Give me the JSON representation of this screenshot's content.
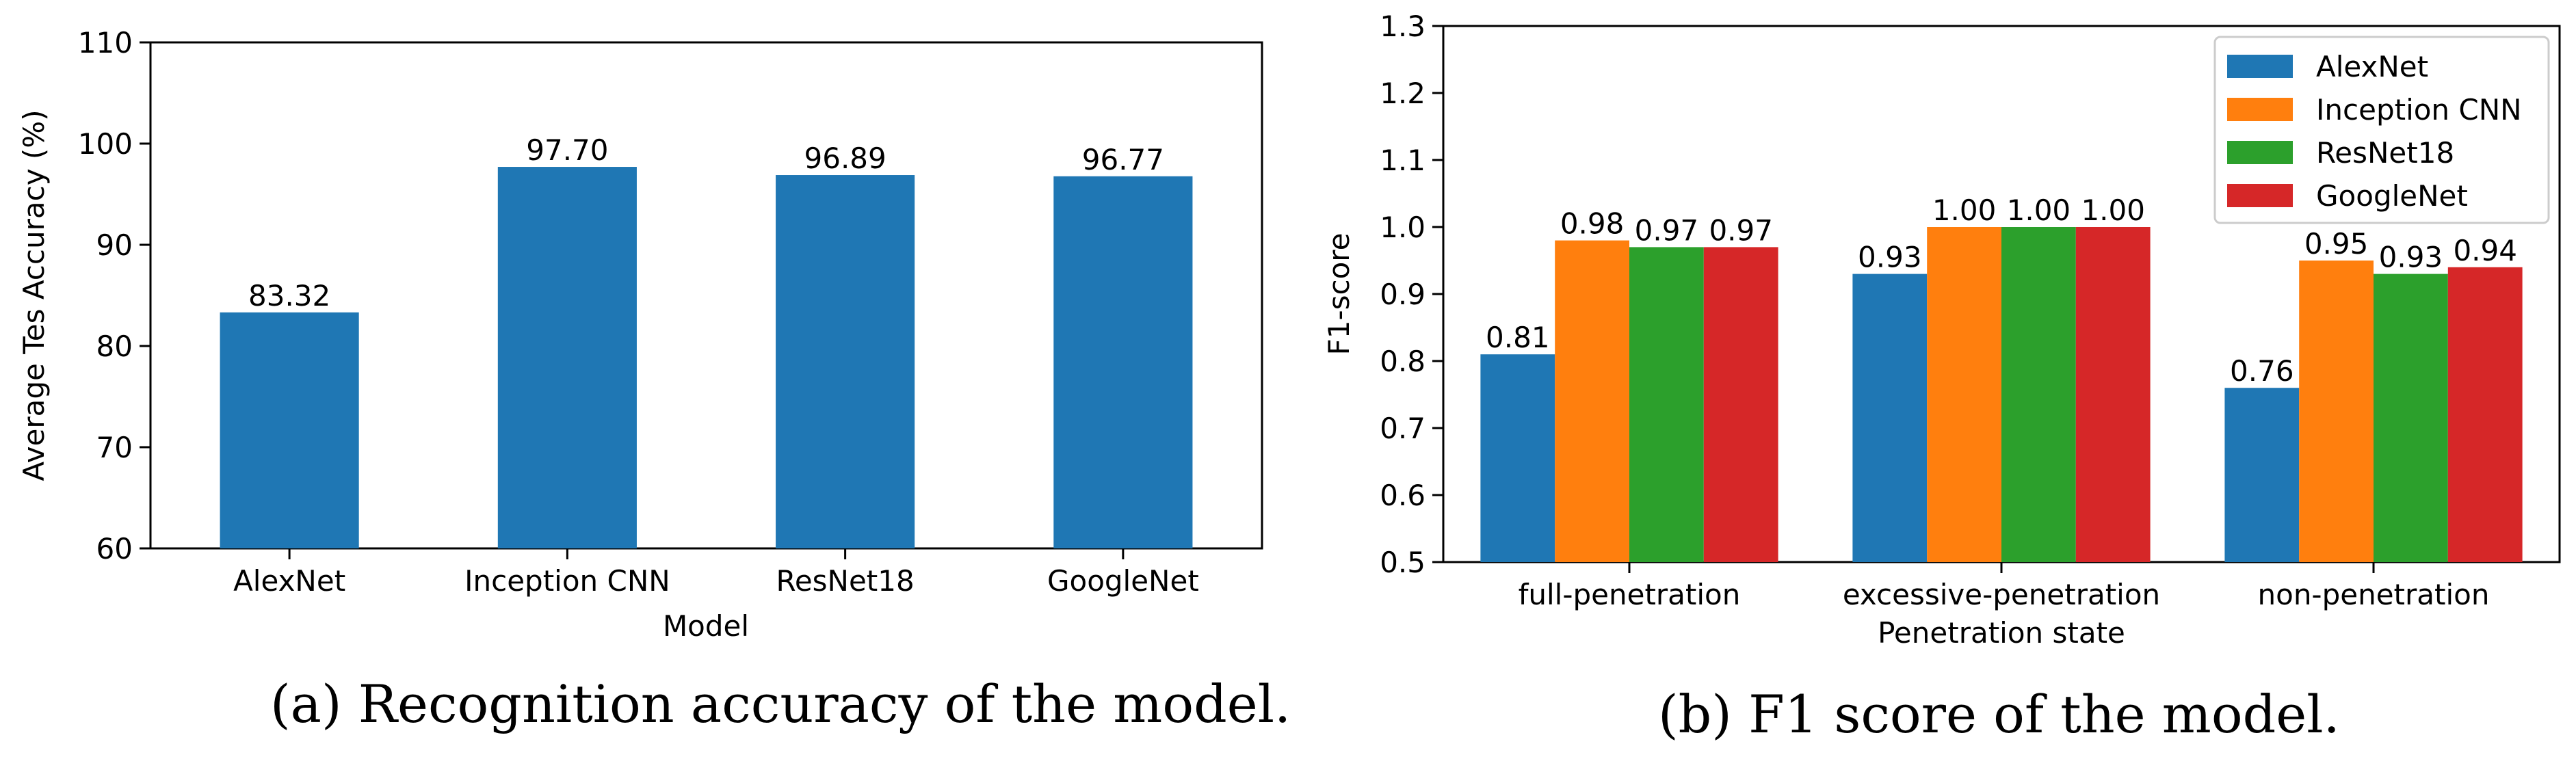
{
  "charts": [
    {
      "type": "bar",
      "title": "",
      "xlabel": "Model",
      "ylabel": "Average Tes Accuracy (%)",
      "categories": [
        "AlexNet",
        "Inception CNN",
        "ResNet18",
        "GoogleNet"
      ],
      "values": [
        83.32,
        97.7,
        96.89,
        96.77
      ],
      "value_labels": [
        "83.32",
        "97.70",
        "96.89",
        "96.77"
      ],
      "ylim": [
        60,
        110
      ],
      "yticks": [
        "60",
        "70",
        "80",
        "90",
        "100",
        "110"
      ],
      "color": "#1f77b4",
      "caption": "(a) Recognition accuracy of the model."
    },
    {
      "type": "bar",
      "title": "",
      "xlabel": "Penetration state",
      "ylabel": "F1-score",
      "categories": [
        "full-penetration",
        "excessive-penetration",
        "non-penetration"
      ],
      "series": [
        {
          "name": "AlexNet",
          "color": "#1f77b4",
          "values": [
            0.81,
            0.93,
            0.76
          ],
          "labels": [
            "0.81",
            "0.93",
            "0.76"
          ]
        },
        {
          "name": "Inception CNN",
          "color": "#ff7f0e",
          "values": [
            0.98,
            1.0,
            0.95
          ],
          "labels": [
            "0.98",
            "1.00",
            "0.95"
          ]
        },
        {
          "name": "ResNet18",
          "color": "#2ca02c",
          "values": [
            0.97,
            1.0,
            0.93
          ],
          "labels": [
            "0.97",
            "1.00",
            "0.93"
          ]
        },
        {
          "name": "GoogleNet",
          "color": "#d62728",
          "values": [
            0.97,
            1.0,
            0.94
          ],
          "labels": [
            "0.97",
            "1.00",
            "0.94"
          ]
        }
      ],
      "ylim": [
        0.5,
        1.3
      ],
      "yticks": [
        "0.5",
        "0.6",
        "0.7",
        "0.8",
        "0.9",
        "1.0",
        "1.1",
        "1.2",
        "1.3"
      ],
      "legend_position": "top-right",
      "caption": "(b) F1 score of the model."
    }
  ]
}
